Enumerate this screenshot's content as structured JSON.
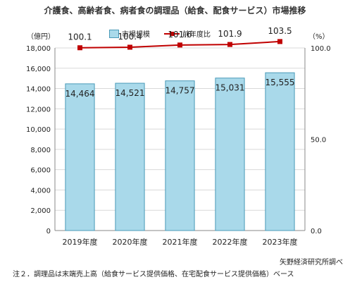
{
  "chart_data": {
    "type": "bar",
    "title": "介護食、高齢者食、病者食の調理品（給食、配食サービス）市場推移",
    "categories": [
      "2019年度",
      "2020年度",
      "2021年度",
      "2022年度",
      "2023年度"
    ],
    "series": [
      {
        "name": "市場規模",
        "type": "bar",
        "axis": "left",
        "values": [
          14464,
          14521,
          14757,
          15031,
          15555
        ],
        "labels": [
          "14,464",
          "14,521",
          "14,757",
          "15,031",
          "15,555"
        ]
      },
      {
        "name": "前年度比",
        "type": "line",
        "axis": "right",
        "values": [
          100.1,
          100.4,
          101.6,
          101.9,
          103.5
        ],
        "labels": [
          "100.1",
          "100.4",
          "101.6",
          "101.9",
          "103.5"
        ]
      }
    ],
    "y_left": {
      "unit": "（億円）",
      "min": 0,
      "max": 18000,
      "step": 2000,
      "ticks": [
        "0",
        "2,000",
        "4,000",
        "6,000",
        "8,000",
        "10,000",
        "12,000",
        "14,000",
        "16,000",
        "18,000"
      ]
    },
    "y_right": {
      "unit": "（%）",
      "min": 0,
      "max": 100,
      "step": 50,
      "ticks": [
        "0.0",
        "50.0",
        "100.0"
      ]
    },
    "grid": true,
    "legend": "top-center",
    "source": "矢野経済研究所調べ",
    "note": "注２．調理品は末端売上高（給食サービス提供価格、在宅配食サービス提供価格）ベース",
    "colors": {
      "bar_fill": "#a9d9ea",
      "bar_stroke": "#4a9ab8",
      "line": "#c00000",
      "grid": "#d9d9d9"
    }
  }
}
